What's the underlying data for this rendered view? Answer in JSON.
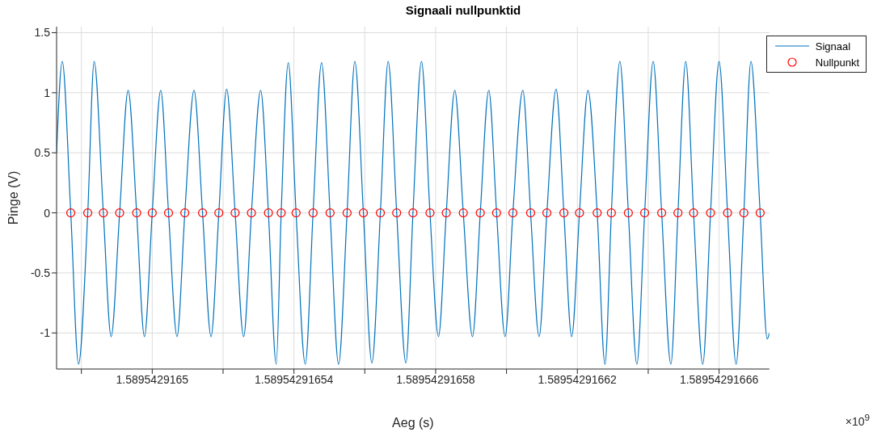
{
  "chart_data": {
    "type": "line",
    "title": "Signaali nullpunktid",
    "xlabel": "Aeg (s)",
    "ylabel": "Pinge (V)",
    "annotations": [
      "×10$^{9}$"
    ],
    "xlim": [
      1.589542916473,
      1.5895429166742
    ],
    "xticks": [
      {
        "value": 1.58954291648,
        "label": null
      },
      1.5895429165,
      {
        "value": 1.58954291652,
        "label": null
      },
      1.58954291654,
      {
        "value": 1.58954291656,
        "label": null
      },
      1.58954291658,
      {
        "value": 1.5895429166,
        "label": null
      },
      1.58954291662,
      {
        "value": 1.58954291664,
        "label": null
      },
      1.58954291666
    ],
    "ylim": [
      -1.3,
      1.55
    ],
    "yticks": [
      -1,
      -0.5,
      0,
      0.5,
      1,
      1.5
    ],
    "grid": true,
    "legend": "top right",
    "series": [
      {
        "name": "Signaal",
        "color": "#0072bd",
        "line_style": "solid",
        "x": [
          1.589542916473,
          1.5895429164746,
          1.589542916477,
          1.5895429164792,
          1.5895429164818,
          1.5895429164836,
          1.5895429164862,
          1.5895429164884,
          1.5895429164908,
          1.5895429164932,
          1.5895429164956,
          1.5895429164978,
          1.5895429165,
          1.5895429165024,
          1.5895429165046,
          1.589542916507,
          1.5895429165092,
          1.5895429165118,
          1.5895429165142,
          1.5895429165166,
          1.5895429165188,
          1.589542916521,
          1.5895429165234,
          1.5895429165258,
          1.589542916528,
          1.5895429165306,
          1.5895429165328,
          1.589542916535,
          1.5895429165364,
          1.5895429165384,
          1.5895429165406,
          1.5895429165432,
          1.5895429165454,
          1.5895429165478,
          1.5895429165502,
          1.5895429165526,
          1.589542916555,
          1.5895429165572,
          1.5895429165596,
          1.589542916562,
          1.5895429165644,
          1.5895429165666,
          1.589542916569,
          1.5895429165716,
          1.5895429165736,
          1.589542916576,
          1.5895429165784,
          1.5895429165808,
          1.589542916583,
          1.5895429165854,
          1.5895429165878,
          1.5895429165904,
          1.5895429165926,
          1.589542916595,
          1.5895429165972,
          1.5895429165996,
          1.5895429166018,
          1.5895429166046,
          1.5895429166068,
          1.5895429166092,
          1.5895429166114,
          1.589542916614,
          1.5895429166162,
          1.5895429166184,
          1.5895429166206,
          1.589542916623,
          1.5895429166256,
          1.5895429166278,
          1.5895429166296,
          1.589542916632,
          1.5895429166344,
          1.5895429166368,
          1.589542916639,
          1.5895429166414,
          1.5895429166438,
          1.5895429166464,
          1.5895429166484,
          1.5895429166506,
          1.5895429166528,
          1.5895429166554,
          1.5895429166576,
          1.58954291666,
          1.5895429166624,
          1.5895429166648,
          1.589542916667,
          1.589542916669,
          1.5895429166716,
          1.5895429166736,
          1.5895429166742
        ],
        "values": [
          0.5,
          1.26,
          0,
          -1.26,
          0,
          1.26,
          0,
          -1.03,
          0,
          1.02,
          0,
          -1.03,
          0,
          1.02,
          0,
          -1.03,
          0,
          1.02,
          0,
          -1.03,
          0,
          1.03,
          0,
          -1.03,
          0,
          1.02,
          0,
          -1.26,
          0,
          1.25,
          0,
          -1.26,
          0,
          1.25,
          0,
          -1.26,
          0,
          1.26,
          0,
          -1.25,
          0,
          1.26,
          0,
          -1.25,
          0,
          1.26,
          0,
          -1.03,
          0,
          1.02,
          0,
          -1.03,
          0,
          1.02,
          0,
          -1.03,
          0,
          1.02,
          0,
          -1.03,
          0,
          1.03,
          0,
          -1.03,
          0,
          1.02,
          0,
          -1.26,
          0,
          1.26,
          0,
          -1.26,
          0,
          1.26,
          0,
          -1.26,
          0,
          1.26,
          0,
          -1.26,
          0,
          1.26,
          0,
          -1.26,
          0,
          1.26,
          0,
          -1.05,
          -1.0
        ]
      },
      {
        "name": "Nullpunkt",
        "type": "scatter",
        "color": "#ff0000",
        "marker": "circle",
        "x": [
          1.589542916477,
          1.5895429164818,
          1.5895429164862,
          1.5895429164908,
          1.5895429164956,
          1.5895429165,
          1.5895429165046,
          1.5895429165092,
          1.5895429165142,
          1.5895429165188,
          1.5895429165234,
          1.589542916528,
          1.5895429165328,
          1.5895429165364,
          1.5895429165406,
          1.5895429165454,
          1.5895429165502,
          1.589542916555,
          1.5895429165596,
          1.5895429165644,
          1.589542916569,
          1.5895429165736,
          1.5895429165784,
          1.589542916583,
          1.5895429165878,
          1.5895429165926,
          1.5895429165972,
          1.5895429166018,
          1.5895429166068,
          1.5895429166114,
          1.5895429166162,
          1.5895429166206,
          1.5895429166256,
          1.5895429166296,
          1.5895429166344,
          1.589542916639,
          1.5895429166438,
          1.5895429166484,
          1.5895429166528,
          1.5895429166576,
          1.5895429166624,
          1.589542916667,
          1.5895429166716
        ],
        "values": [
          0,
          0,
          0,
          0,
          0,
          0,
          0,
          0,
          0,
          0,
          0,
          0,
          0,
          0,
          0,
          0,
          0,
          0,
          0,
          0,
          0,
          0,
          0,
          0,
          0,
          0,
          0,
          0,
          0,
          0,
          0,
          0,
          0,
          0,
          0,
          0,
          0,
          0,
          0,
          0,
          0,
          0,
          0
        ]
      }
    ]
  }
}
